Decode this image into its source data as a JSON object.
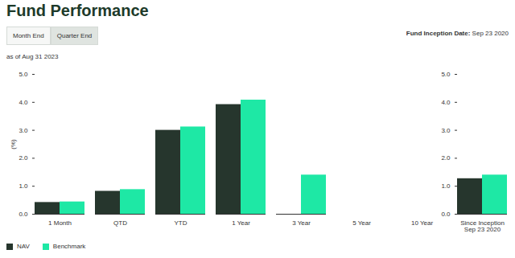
{
  "chart_data": {
    "type": "bar",
    "title": "Fund Performance",
    "controls": [
      "Month End",
      "Quarter End"
    ],
    "inception_label": "Fund Inception Date:",
    "inception_date": "Sep 23 2020",
    "subtitle": "as of Aug 31 2023",
    "ylabel": "(%)",
    "categories": [
      "1 Month",
      "QTD",
      "YTD",
      "1 Year",
      "3 Year",
      "5 Year",
      "10 Year",
      "Since Inception\nSep 23 2020"
    ],
    "series": [
      {
        "name": "NAV",
        "color": "#26362d",
        "values": [
          0.42,
          0.82,
          3.0,
          3.92,
          null,
          null,
          null,
          1.27
        ]
      },
      {
        "name": "Benchmark",
        "color": "#1ee8a5",
        "values": [
          0.44,
          0.88,
          3.12,
          4.08,
          1.4,
          null,
          null,
          1.4
        ]
      }
    ],
    "ylim": [
      0,
      5
    ],
    "yticks": [
      0,
      1,
      2,
      3,
      4,
      5
    ],
    "grid": false,
    "legend": "bottom-left",
    "data_labels": false
  }
}
